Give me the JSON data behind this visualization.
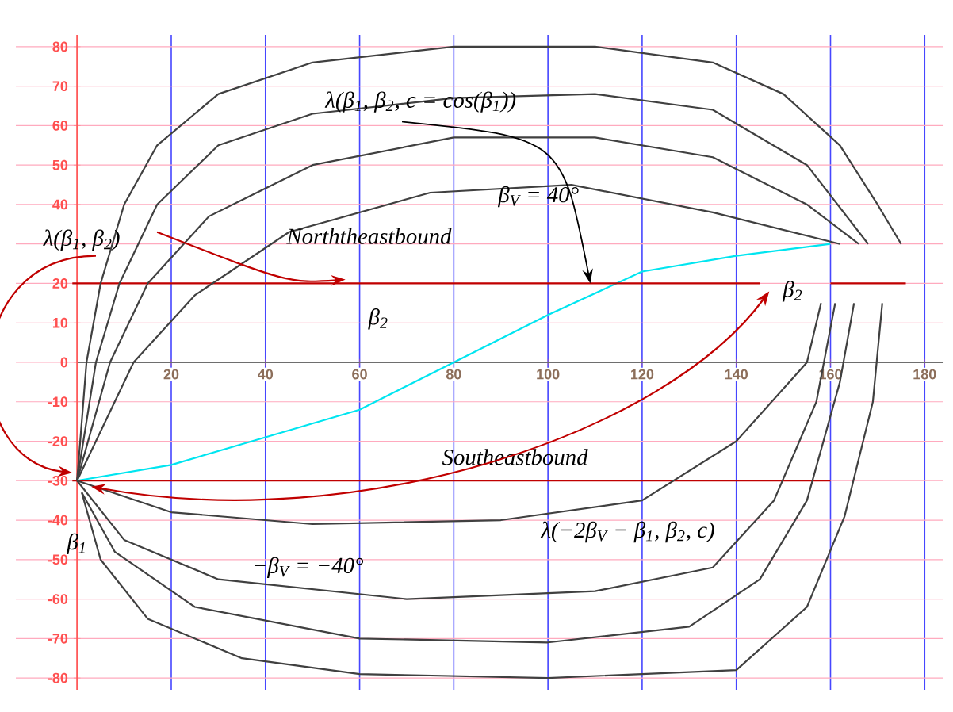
{
  "chart_data": {
    "type": "line",
    "xlim": [
      -13,
      184
    ],
    "ylim": [
      -83,
      83
    ],
    "xticks": [
      20,
      40,
      60,
      80,
      100,
      120,
      140,
      160,
      180
    ],
    "yticks": [
      -80,
      -70,
      -60,
      -50,
      -40,
      -30,
      -20,
      -10,
      0,
      10,
      20,
      {
        "value": 30,
        "label": null
      },
      40,
      50,
      60,
      70,
      80
    ],
    "grid": true,
    "marker": "none",
    "line_style": "solid",
    "series": [
      {
        "color": "#00e5f0",
        "x": [
          0,
          20,
          40,
          60,
          80,
          100,
          120,
          140,
          160
        ],
        "values": [
          -30,
          -26,
          -19,
          -12,
          0,
          12,
          23,
          27,
          30
        ]
      },
      {
        "color": "#c00000",
        "x": [
          -1,
          145,
          152,
          160,
          176
        ],
        "values": [
          20,
          20,
          null,
          20,
          20
        ]
      },
      {
        "color": "#c00000",
        "x": [
          -1,
          160
        ],
        "values": [
          -30,
          -30
        ]
      },
      {
        "color": "#404040",
        "x": [
          0,
          2,
          5,
          10,
          17,
          30,
          50,
          80,
          110,
          135,
          150,
          162,
          170,
          175
        ],
        "values": [
          -30,
          0,
          20,
          40,
          55,
          68,
          76,
          80,
          80,
          76,
          68,
          55,
          40,
          30
        ]
      },
      {
        "color": "#404040",
        "x": [
          0,
          4,
          9,
          17,
          30,
          50,
          80,
          110,
          135,
          155,
          168
        ],
        "values": [
          -30,
          0,
          20,
          40,
          55,
          63,
          67,
          68,
          64,
          50,
          30
        ]
      },
      {
        "color": "#404040",
        "x": [
          0,
          7,
          15,
          28,
          50,
          80,
          110,
          135,
          155,
          166
        ],
        "values": [
          -30,
          0,
          20,
          37,
          50,
          57,
          57,
          52,
          40,
          30
        ]
      },
      {
        "color": "#404040",
        "x": [
          0,
          12,
          25,
          45,
          75,
          105,
          135,
          162
        ],
        "values": [
          -30,
          0,
          17,
          33,
          43,
          45,
          38,
          30
        ]
      },
      {
        "color": "#404040",
        "x": [
          1,
          5,
          15,
          35,
          60,
          100,
          140,
          155,
          163,
          169,
          171
        ],
        "values": [
          -33,
          -50,
          -65,
          -75,
          -79,
          -80,
          -78,
          -62,
          -39,
          -10,
          15
        ]
      },
      {
        "color": "#404040",
        "x": [
          1,
          8,
          25,
          60,
          100,
          130,
          145,
          155,
          162,
          165
        ],
        "values": [
          -33,
          -48,
          -62,
          -70,
          -71,
          -67,
          -55,
          -35,
          -5,
          15
        ]
      },
      {
        "color": "#404040",
        "x": [
          0,
          10,
          30,
          70,
          110,
          135,
          148,
          157,
          161
        ],
        "values": [
          -30,
          -45,
          -55,
          -60,
          -58,
          -52,
          -35,
          -10,
          15
        ]
      },
      {
        "color": "#404040",
        "x": [
          0,
          20,
          50,
          90,
          120,
          140,
          155,
          158
        ],
        "values": [
          -30,
          -38,
          -41,
          -40,
          -35,
          -20,
          0,
          15
        ]
      }
    ],
    "annotations": [
      {
        "text": "λ(β$_{1}$, β$_{2}$, c = cos(β$_{1}$))",
        "x": 109,
        "y": 20
      },
      "β$_{V}$ = 40°",
      "λ(β$_{1}$, β$_{2}$)",
      "Norththeastbound",
      "β$_{2}$",
      "β$_{2}$",
      "Southeastbound",
      "β$_{1}$",
      "−β$_{V}$ = −40°",
      "λ(−2β$_{V}$ − β$_{1}$, β$_{2}$, c)"
    ]
  }
}
